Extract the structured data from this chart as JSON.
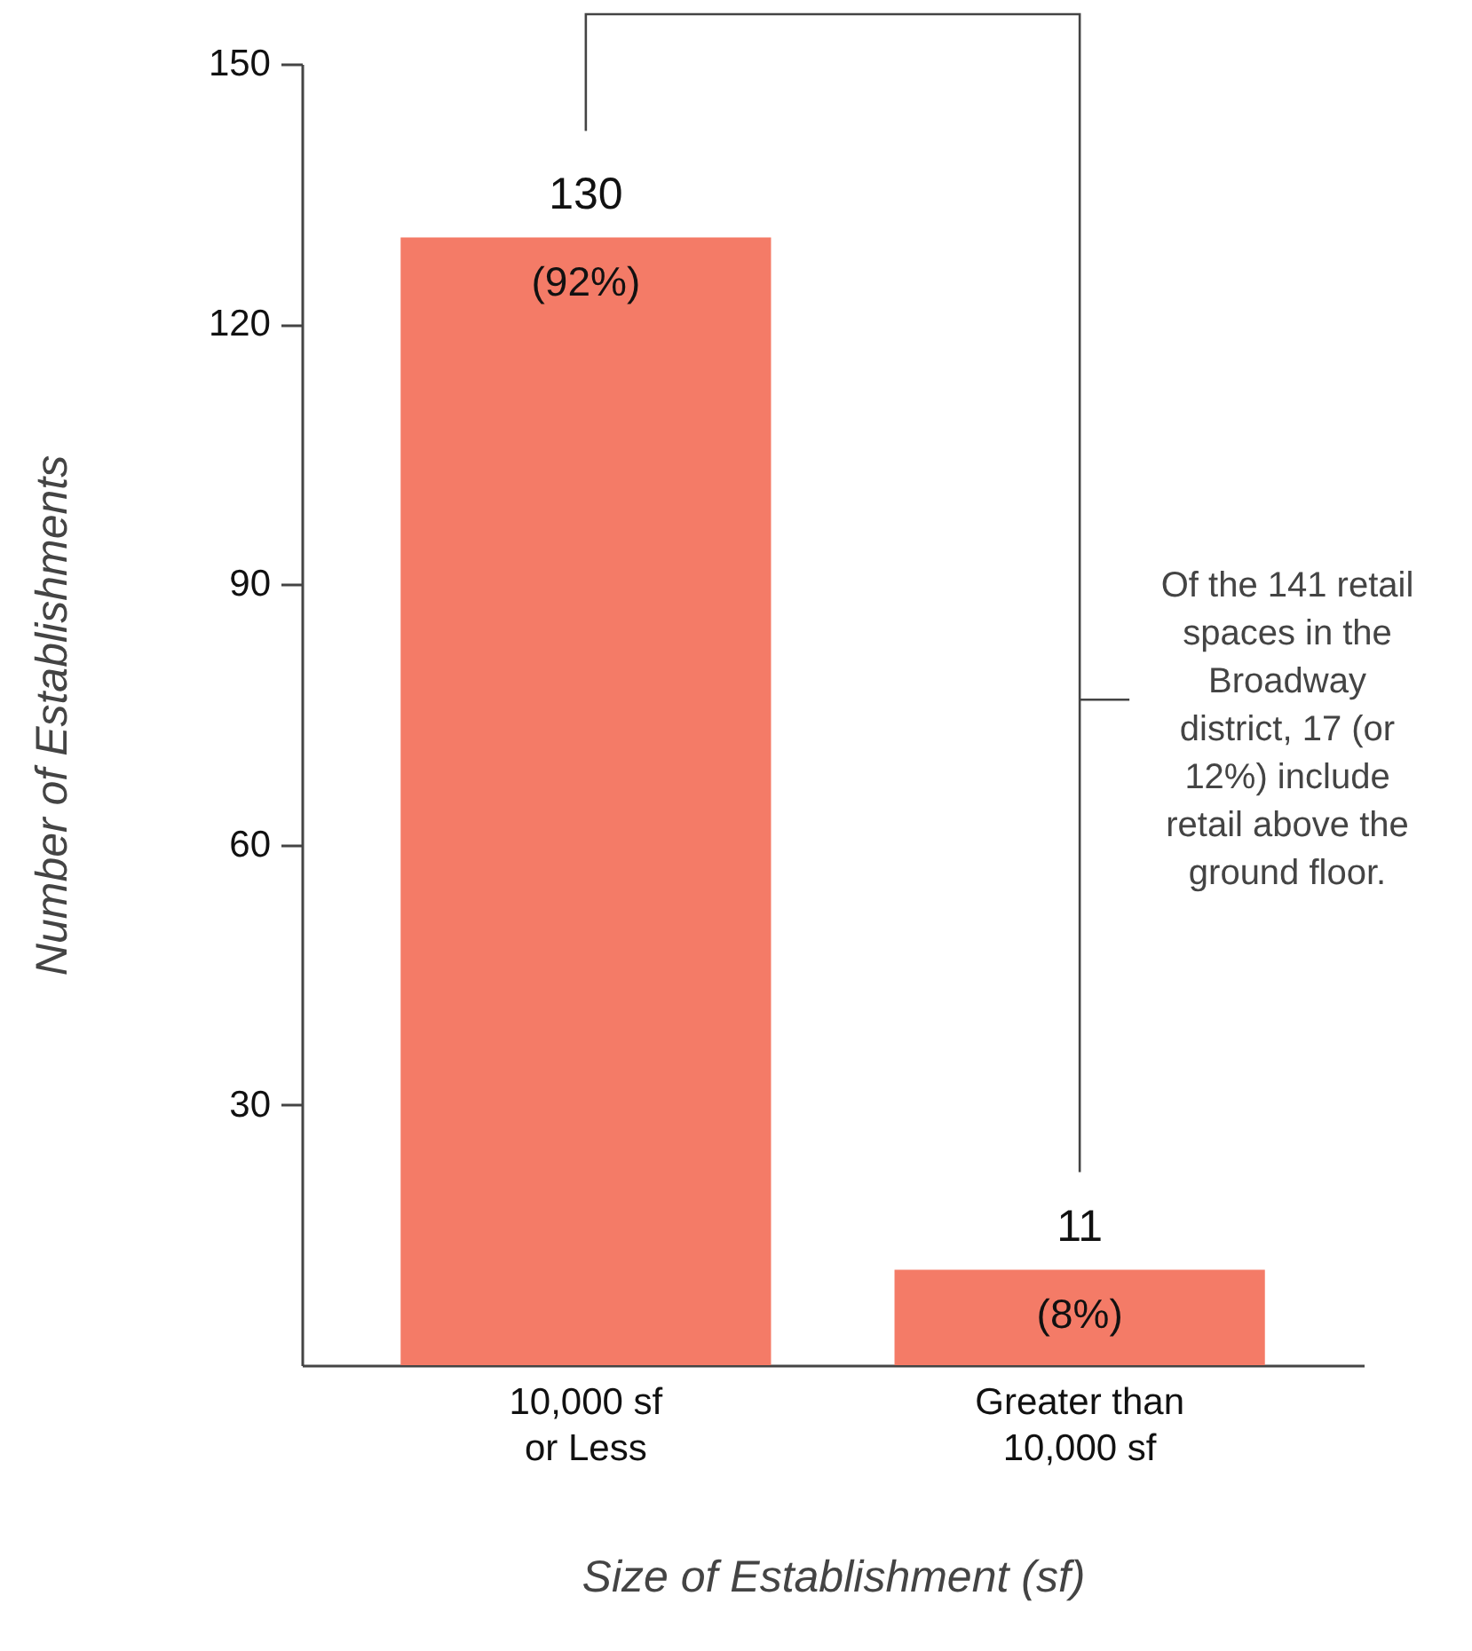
{
  "chart_data": {
    "type": "bar",
    "xlabel": "Size of Establishment (sf)",
    "ylabel": "Number of Establishments",
    "categories": [
      "10,000 sf or Less",
      "Greater than 10,000 sf"
    ],
    "values": [
      130,
      11
    ],
    "color": "#f47b67",
    "ylim": [
      0,
      150
    ],
    "yticks": [
      30,
      60,
      90,
      120,
      150
    ],
    "grid": false,
    "data_labels": true,
    "annotations": [
      {
        "text": "(92%)",
        "x": "10,000 sf or Less",
        "y": 130
      },
      {
        "text": "(8%)",
        "x": "Greater than 10,000 sf",
        "y": 11
      },
      "Of the 141 retail spaces in the Broadway district, 17 (or 12%) include retail above the ground floor."
    ]
  }
}
